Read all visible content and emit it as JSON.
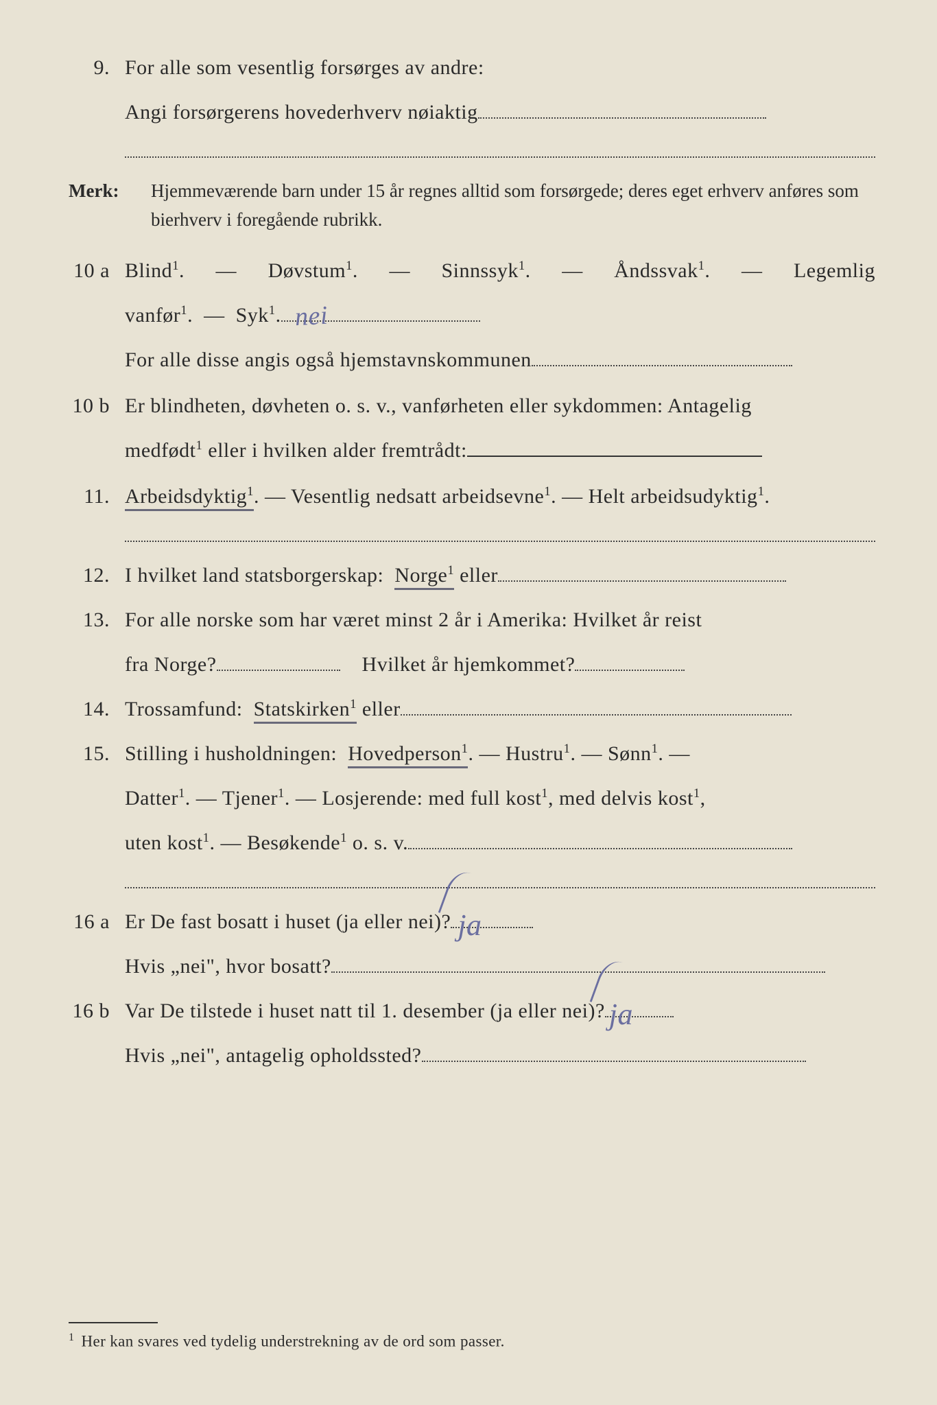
{
  "q9": {
    "num": "9.",
    "line1": "For alle som vesentlig forsørges av andre:",
    "line2_pre": "Angi forsørgerens hovederhverv nøiaktig"
  },
  "merk": {
    "label": "Merk:",
    "text": "Hjemmeværende barn under 15 år regnes alltid som forsørgede; deres eget erhverv anføres som bierhverv i foregående rubrikk."
  },
  "q10a": {
    "num": "10 a",
    "opts": [
      "Blind",
      "Døvstum",
      "Sinnssyk",
      "Åndssvak",
      "Legemlig"
    ],
    "line2_pre": "vanfør",
    "line2_mid": "Syk",
    "hand": "nei",
    "line3": "For alle disse angis også hjemstavnskommunen"
  },
  "q10b": {
    "num": "10 b",
    "line1": "Er blindheten, døvheten o. s. v., vanførheten eller sykdommen: Antagelig",
    "line2_pre": "medfødt",
    "line2_post": " eller i hvilken alder fremtrådt:"
  },
  "q11": {
    "num": "11.",
    "sel": "Arbeidsdyktig",
    "rest": " — Vesentlig nedsatt arbeidsevne¹. — Helt arbeidsudyktig¹."
  },
  "q12": {
    "num": "12.",
    "pre": "I hvilket land statsborgerskap: ",
    "sel": "Norge",
    "post": " eller"
  },
  "q13": {
    "num": "13.",
    "line1": "For alle norske som har været minst 2 år i Amerika: Hvilket år reist",
    "line2_a": "fra Norge?",
    "line2_b": "Hvilket år hjemkommet?"
  },
  "q14": {
    "num": "14.",
    "pre": "Trossamfund: ",
    "sel": "Statskirken",
    "post": " eller"
  },
  "q15": {
    "num": "15.",
    "pre": "Stilling i husholdningen: ",
    "sel": "Hovedperson",
    "rest1": ". — Hustru¹. — Sønn¹. —",
    "line2": "Datter¹. — Tjener¹. — Losjerende: med full kost¹, med delvis kost¹,",
    "line3_pre": "uten kost¹. — Besøkende¹ o. s. v."
  },
  "q16a": {
    "num": "16 a",
    "q": "Er De fast bosatt i huset (ja eller nei)?",
    "ans": "ja",
    "line2": "Hvis „nei\", hvor bosatt?"
  },
  "q16b": {
    "num": "16 b",
    "q": "Var De tilstede i huset natt til 1. desember (ja eller nei)?",
    "ans": "ja",
    "line2": "Hvis „nei\", antagelig opholdssted?"
  },
  "footnote": "Her kan svares ved tydelig understrekning av de ord som passer."
}
